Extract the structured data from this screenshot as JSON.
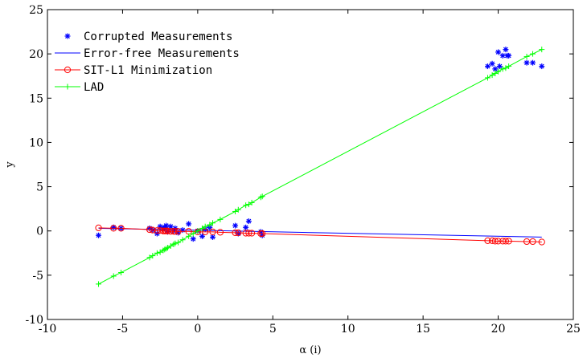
{
  "chart_data": {
    "type": "scatter",
    "title": "",
    "xlabel": "α (i)",
    "ylabel": "y",
    "xlim": [
      -10,
      25
    ],
    "ylim": [
      -10,
      25
    ],
    "xticks": [
      -10,
      -5,
      0,
      5,
      10,
      15,
      20,
      25
    ],
    "yticks": [
      -10,
      -5,
      0,
      5,
      10,
      15,
      20,
      25
    ],
    "grid": false,
    "legend_position": "top-left",
    "series": [
      {
        "name": "Corrupted Measurements",
        "kind": "scatter",
        "marker": "asterisk",
        "color": "#0000ff",
        "x": [
          -6.6,
          -5.6,
          -5.1,
          -3.2,
          -3.0,
          -2.7,
          -2.5,
          -2.3,
          -2.2,
          -2.1,
          -2.0,
          -1.8,
          -1.6,
          -1.5,
          -1.3,
          -1.0,
          -0.6,
          -0.3,
          0.0,
          0.3,
          0.5,
          0.8,
          1.0,
          2.5,
          2.7,
          3.2,
          3.4,
          4.2,
          4.3,
          19.3,
          19.6,
          19.8,
          20.0,
          20.1,
          20.3,
          20.5,
          20.6,
          20.7,
          21.9,
          22.3,
          22.9
        ],
        "y": [
          -0.5,
          0.4,
          0.3,
          0.3,
          0.1,
          -0.3,
          0.5,
          0.2,
          0.4,
          0.6,
          -0.1,
          0.5,
          0.0,
          0.3,
          -0.2,
          0.1,
          0.8,
          -0.9,
          0.0,
          -0.6,
          0.2,
          0.4,
          -0.7,
          0.6,
          -0.3,
          0.4,
          1.1,
          -0.1,
          -0.5,
          18.6,
          18.9,
          18.3,
          20.2,
          18.6,
          19.8,
          20.5,
          19.8,
          19.8,
          19.0,
          19.0,
          18.6
        ]
      },
      {
        "name": "Error-free Measurements",
        "kind": "line",
        "color": "#0000ff",
        "x": [
          -6.6,
          22.9
        ],
        "y": [
          0.3,
          -0.7
        ]
      },
      {
        "name": "SIT-L1 Minimization",
        "kind": "line-marker",
        "marker": "circle",
        "color": "#ff0000",
        "x": [
          -6.6,
          -5.6,
          -5.1,
          -3.2,
          -3.0,
          -2.7,
          -2.5,
          -2.3,
          -2.2,
          -2.1,
          -2.0,
          -1.8,
          -1.6,
          -1.5,
          -1.3,
          -0.6,
          0.0,
          0.5,
          1.0,
          1.5,
          2.5,
          2.7,
          3.2,
          3.4,
          3.6,
          4.2,
          4.3,
          19.3,
          19.6,
          19.8,
          20.0,
          20.3,
          20.5,
          20.7,
          21.9,
          22.3,
          22.9
        ],
        "y": [
          0.35,
          0.3,
          0.3,
          0.15,
          0.1,
          0.05,
          0.05,
          0.0,
          0.0,
          0.0,
          0.0,
          -0.05,
          -0.05,
          -0.05,
          -0.05,
          -0.05,
          -0.1,
          -0.1,
          -0.1,
          -0.15,
          -0.2,
          -0.2,
          -0.25,
          -0.25,
          -0.25,
          -0.3,
          -0.3,
          -1.1,
          -1.1,
          -1.15,
          -1.15,
          -1.15,
          -1.15,
          -1.15,
          -1.2,
          -1.2,
          -1.25
        ]
      },
      {
        "name": "LAD",
        "kind": "line-marker",
        "marker": "plus",
        "color": "#00ff00",
        "x": [
          -6.6,
          -5.6,
          -5.1,
          -3.2,
          -3.0,
          -2.7,
          -2.5,
          -2.3,
          -2.2,
          -2.1,
          -2.0,
          -1.8,
          -1.6,
          -1.5,
          -1.3,
          -1.0,
          -0.6,
          -0.3,
          0.0,
          0.3,
          0.5,
          0.8,
          1.0,
          1.5,
          2.5,
          2.7,
          3.2,
          3.4,
          3.6,
          4.2,
          4.3,
          19.3,
          19.6,
          19.8,
          20.0,
          20.3,
          20.5,
          20.7,
          21.9,
          22.3,
          22.9
        ],
        "y": [
          -6.0,
          -5.1,
          -4.7,
          -3.0,
          -2.8,
          -2.5,
          -2.4,
          -2.2,
          -2.1,
          -2.0,
          -1.9,
          -1.7,
          -1.5,
          -1.4,
          -1.3,
          -1.0,
          -0.6,
          -0.3,
          0.0,
          0.3,
          0.5,
          0.7,
          0.9,
          1.3,
          2.2,
          2.4,
          2.9,
          3.0,
          3.2,
          3.8,
          3.9,
          17.3,
          17.6,
          17.8,
          18.0,
          18.3,
          18.4,
          18.6,
          19.7,
          20.0,
          20.5
        ]
      }
    ]
  }
}
